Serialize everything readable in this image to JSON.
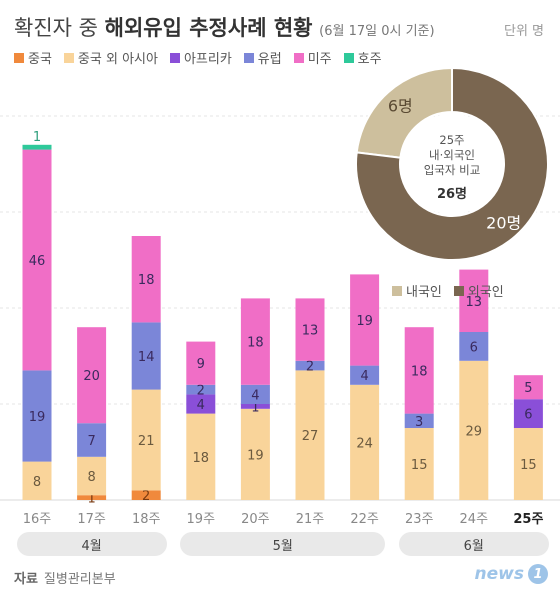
{
  "header": {
    "title_prefix": "확진자 중 ",
    "title_main": "해외유입 추정사례 현황",
    "title_sub": "(6월 17일 0시 기준)",
    "unit": "단위 명"
  },
  "colors": {
    "china": "#f0893c",
    "asia": "#f9d49a",
    "africa": "#8a4fd8",
    "europe": "#7b86d8",
    "americas": "#f06ec6",
    "oceania": "#2ec99a",
    "domestic": "#cdbf9d",
    "foreign": "#7a6650"
  },
  "chart_data": [
    {
      "type": "bar",
      "stacked": true,
      "categories": [
        "16주",
        "17주",
        "18주",
        "19주",
        "20주",
        "21주",
        "22주",
        "23주",
        "24주",
        "25주"
      ],
      "series": [
        {
          "name": "중국",
          "key": "china",
          "values": [
            0,
            1,
            2,
            0,
            0,
            0,
            0,
            0,
            0,
            0
          ]
        },
        {
          "name": "중국 외 아시아",
          "key": "asia",
          "values": [
            8,
            8,
            21,
            18,
            19,
            27,
            24,
            15,
            29,
            15
          ]
        },
        {
          "name": "아프리카",
          "key": "africa",
          "values": [
            0,
            0,
            0,
            4,
            1,
            0,
            0,
            0,
            0,
            6
          ]
        },
        {
          "name": "유럽",
          "key": "europe",
          "values": [
            19,
            7,
            14,
            2,
            4,
            2,
            4,
            3,
            6,
            0
          ]
        },
        {
          "name": "미주",
          "key": "americas",
          "values": [
            46,
            20,
            18,
            9,
            18,
            13,
            19,
            18,
            13,
            5
          ]
        },
        {
          "name": "호주",
          "key": "oceania",
          "values": [
            1,
            0,
            0,
            0,
            0,
            0,
            0,
            0,
            0,
            0
          ]
        }
      ],
      "months": [
        {
          "label": "4월",
          "from": 0,
          "to": 2
        },
        {
          "label": "5월",
          "from": 3,
          "to": 6
        },
        {
          "label": "6월",
          "from": 7,
          "to": 9
        }
      ],
      "highlight_category": "25주",
      "ylim": [
        0,
        85
      ]
    },
    {
      "type": "pie",
      "donut": true,
      "center_lines": [
        "25주",
        "내·외국인",
        "입국자 비교"
      ],
      "center_total": "26명",
      "slices": [
        {
          "name": "내국인",
          "key": "domestic",
          "value": 6,
          "label": "6명"
        },
        {
          "name": "외국인",
          "key": "foreign",
          "value": 20,
          "label": "20명"
        }
      ]
    }
  ],
  "source": {
    "label": "자료",
    "text": "질병관리본부"
  },
  "brand": {
    "name": "news",
    "badge": "1"
  }
}
